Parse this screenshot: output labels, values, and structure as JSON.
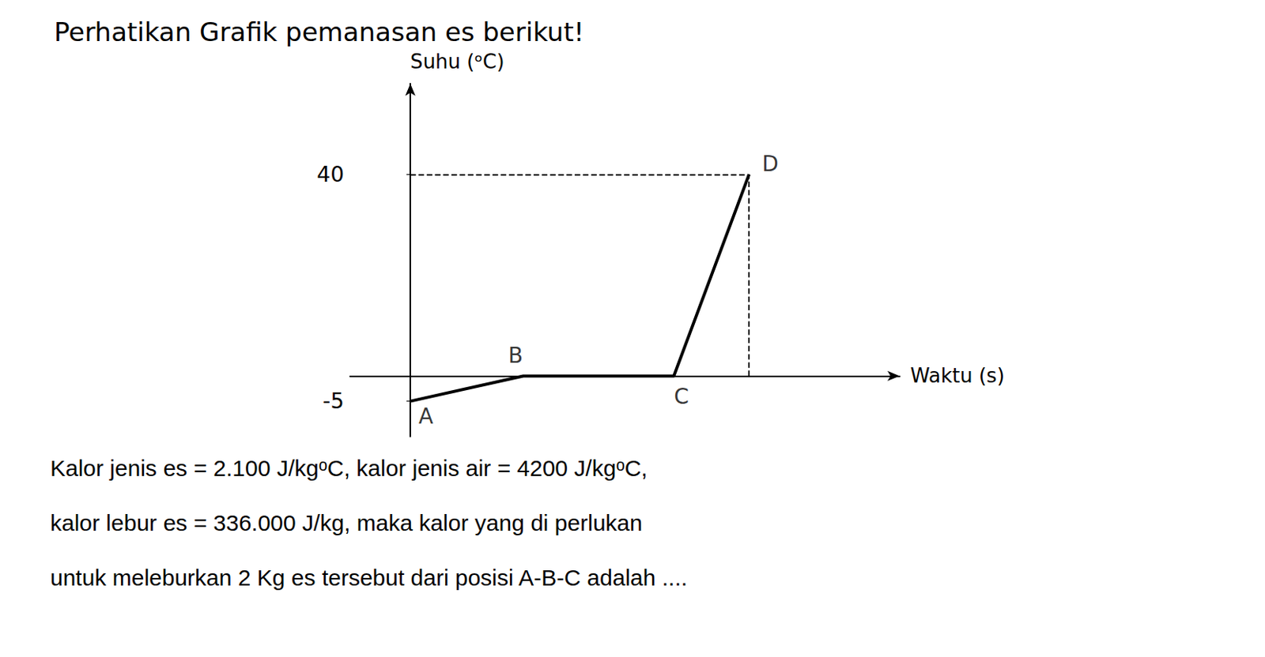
{
  "chart_data": {
    "type": "line",
    "title": "Perhatikan Grafik pemanasan es berikut!",
    "x_label": "Waktu (s)",
    "y_label": "Suhu (ᵒC)",
    "x": [
      0.0,
      1.5,
      3.5,
      4.5
    ],
    "values": [
      -5,
      0,
      0,
      40
    ],
    "color": "black",
    "line_style": "solid",
    "xlim": [
      -0.8,
      6.5
    ],
    "ylim": [
      -12,
      58
    ],
    "yticks": [
      -5,
      40
    ],
    "tick_labels": "y",
    "grid": false,
    "annotations": [
      {
        "text": "A",
        "x": 0.0,
        "y": -5
      },
      {
        "text": "B",
        "x": 1.5,
        "y": 0
      },
      {
        "text": "C",
        "x": 3.5,
        "y": 0
      },
      {
        "text": "D",
        "x": 4.5,
        "y": 40
      },
      {
        "text": "Kalor jenis es = 2.100 J/kgᵒC, kalor jenis air = 4200 J/kgᵒC,"
      },
      {
        "text": "kalor lebur es = 336.000 J/kg, maka kalor yang di perlukan"
      },
      {
        "text": "untuk meleburkan 2 Kg es tersebut dari posisi A-B-C adalah ...."
      }
    ]
  }
}
